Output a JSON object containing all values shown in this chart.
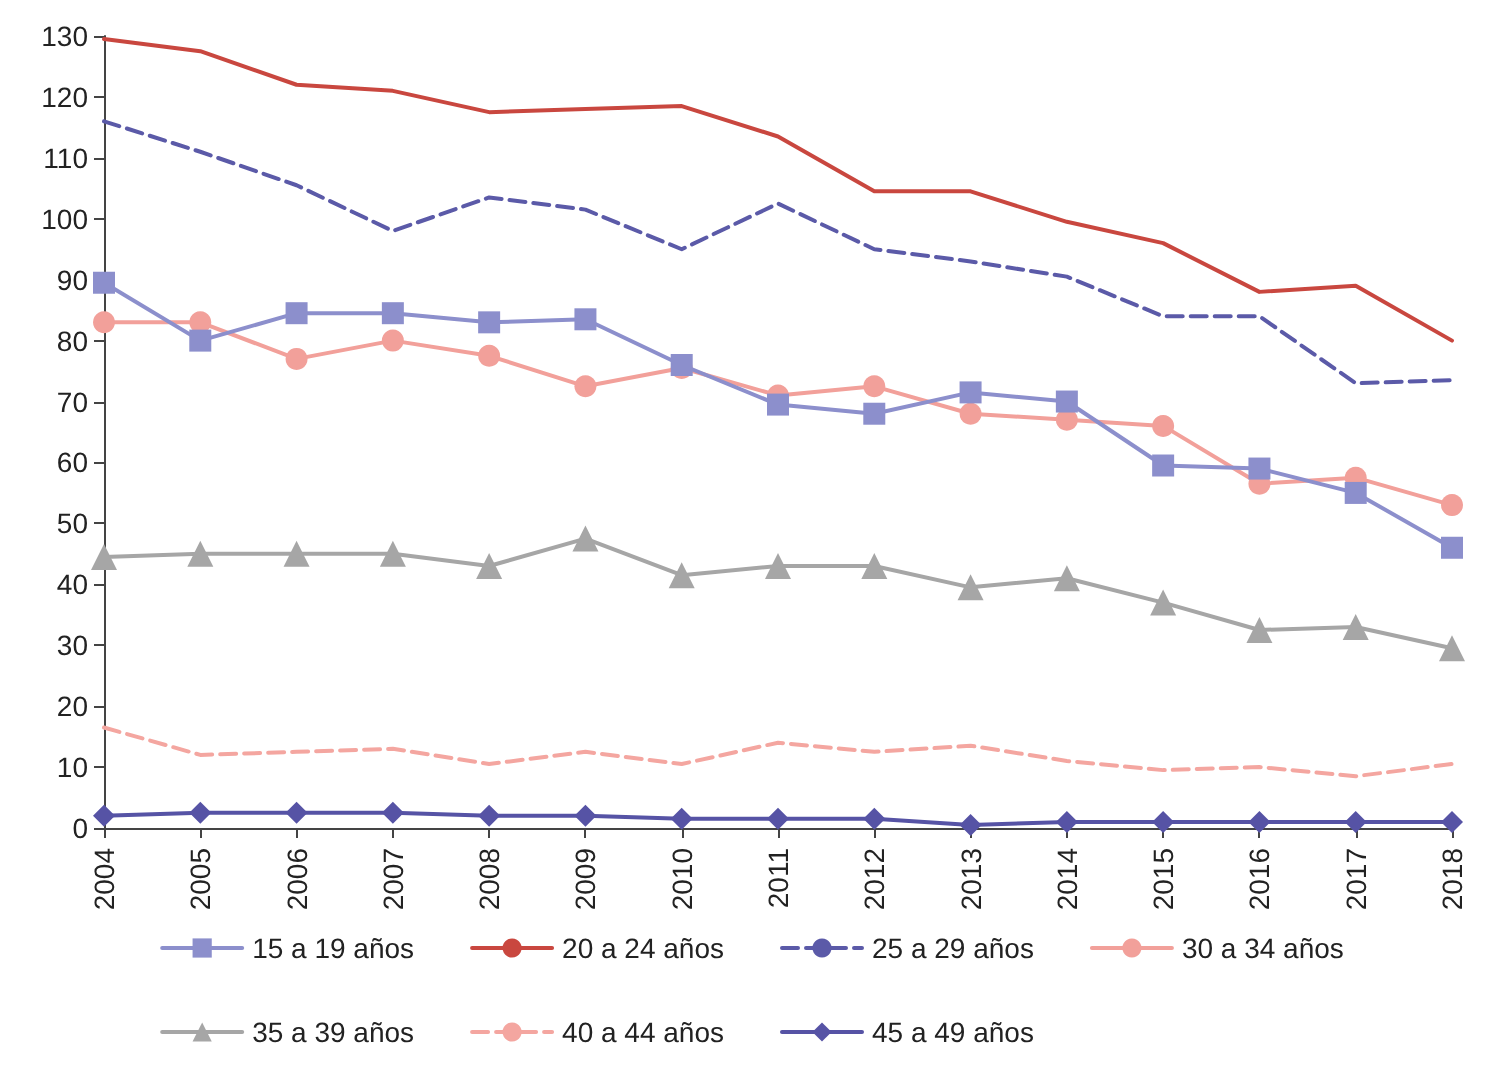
{
  "chart_data": {
    "type": "line",
    "categories": [
      "2004",
      "2005",
      "2006",
      "2007",
      "2008",
      "2009",
      "2010",
      "2011",
      "2012",
      "2013",
      "2014",
      "2015",
      "2016",
      "2017",
      "2018"
    ],
    "ylim": [
      0,
      130
    ],
    "yticks": [
      0,
      10,
      20,
      30,
      40,
      50,
      60,
      70,
      80,
      90,
      100,
      110,
      120,
      130
    ],
    "grid": false,
    "legend": "bottom",
    "series": [
      {
        "name": "15 a 19 años",
        "color": "#8c8fcc",
        "marker": "square",
        "line_style": "solid",
        "values": [
          89.5,
          80,
          84.5,
          84.5,
          83,
          83.5,
          76,
          69.5,
          68,
          71.5,
          70,
          59.5,
          59,
          55,
          46
        ]
      },
      {
        "name": "20 a 24 años",
        "color": "#c9473f",
        "marker": "none",
        "line_style": "solid",
        "values": [
          129.5,
          127.5,
          122,
          121,
          117.5,
          118,
          118.5,
          113.5,
          104.5,
          104.5,
          99.5,
          96,
          88,
          89,
          80
        ]
      },
      {
        "name": "25 a 29 años",
        "color": "#5b5aa8",
        "marker": "none",
        "line_style": "dashed",
        "values": [
          116,
          111,
          105.5,
          98,
          103.5,
          101.5,
          95,
          102.5,
          95,
          93,
          90.5,
          84,
          84,
          73,
          73.5
        ]
      },
      {
        "name": "30 a 34 años",
        "color": "#f2a09a",
        "marker": "circle",
        "line_style": "solid",
        "values": [
          83,
          83,
          77,
          80,
          77.5,
          72.5,
          75.5,
          71,
          72.5,
          68,
          67,
          66,
          56.5,
          57.5,
          53
        ]
      },
      {
        "name": "35 a 39 años",
        "color": "#a6a6a6",
        "marker": "triangle",
        "line_style": "solid",
        "values": [
          44.5,
          45,
          45,
          45,
          43,
          47.5,
          41.5,
          43,
          43,
          39.5,
          41,
          37,
          32.5,
          33,
          29.5
        ]
      },
      {
        "name": "40 a 44 años",
        "color": "#f4a6a0",
        "marker": "none",
        "line_style": "dashed",
        "values": [
          16.5,
          12,
          12.5,
          13,
          10.5,
          12.5,
          10.5,
          14,
          12.5,
          13.5,
          11,
          9.5,
          10,
          8.5,
          10.5
        ]
      },
      {
        "name": "45 a 49 años",
        "color": "#5653a5",
        "marker": "diamond",
        "line_style": "solid",
        "values": [
          2,
          2.5,
          2.5,
          2.5,
          2,
          2,
          1.5,
          1.5,
          1.5,
          0.5,
          1,
          1,
          1,
          1,
          1
        ]
      }
    ]
  }
}
